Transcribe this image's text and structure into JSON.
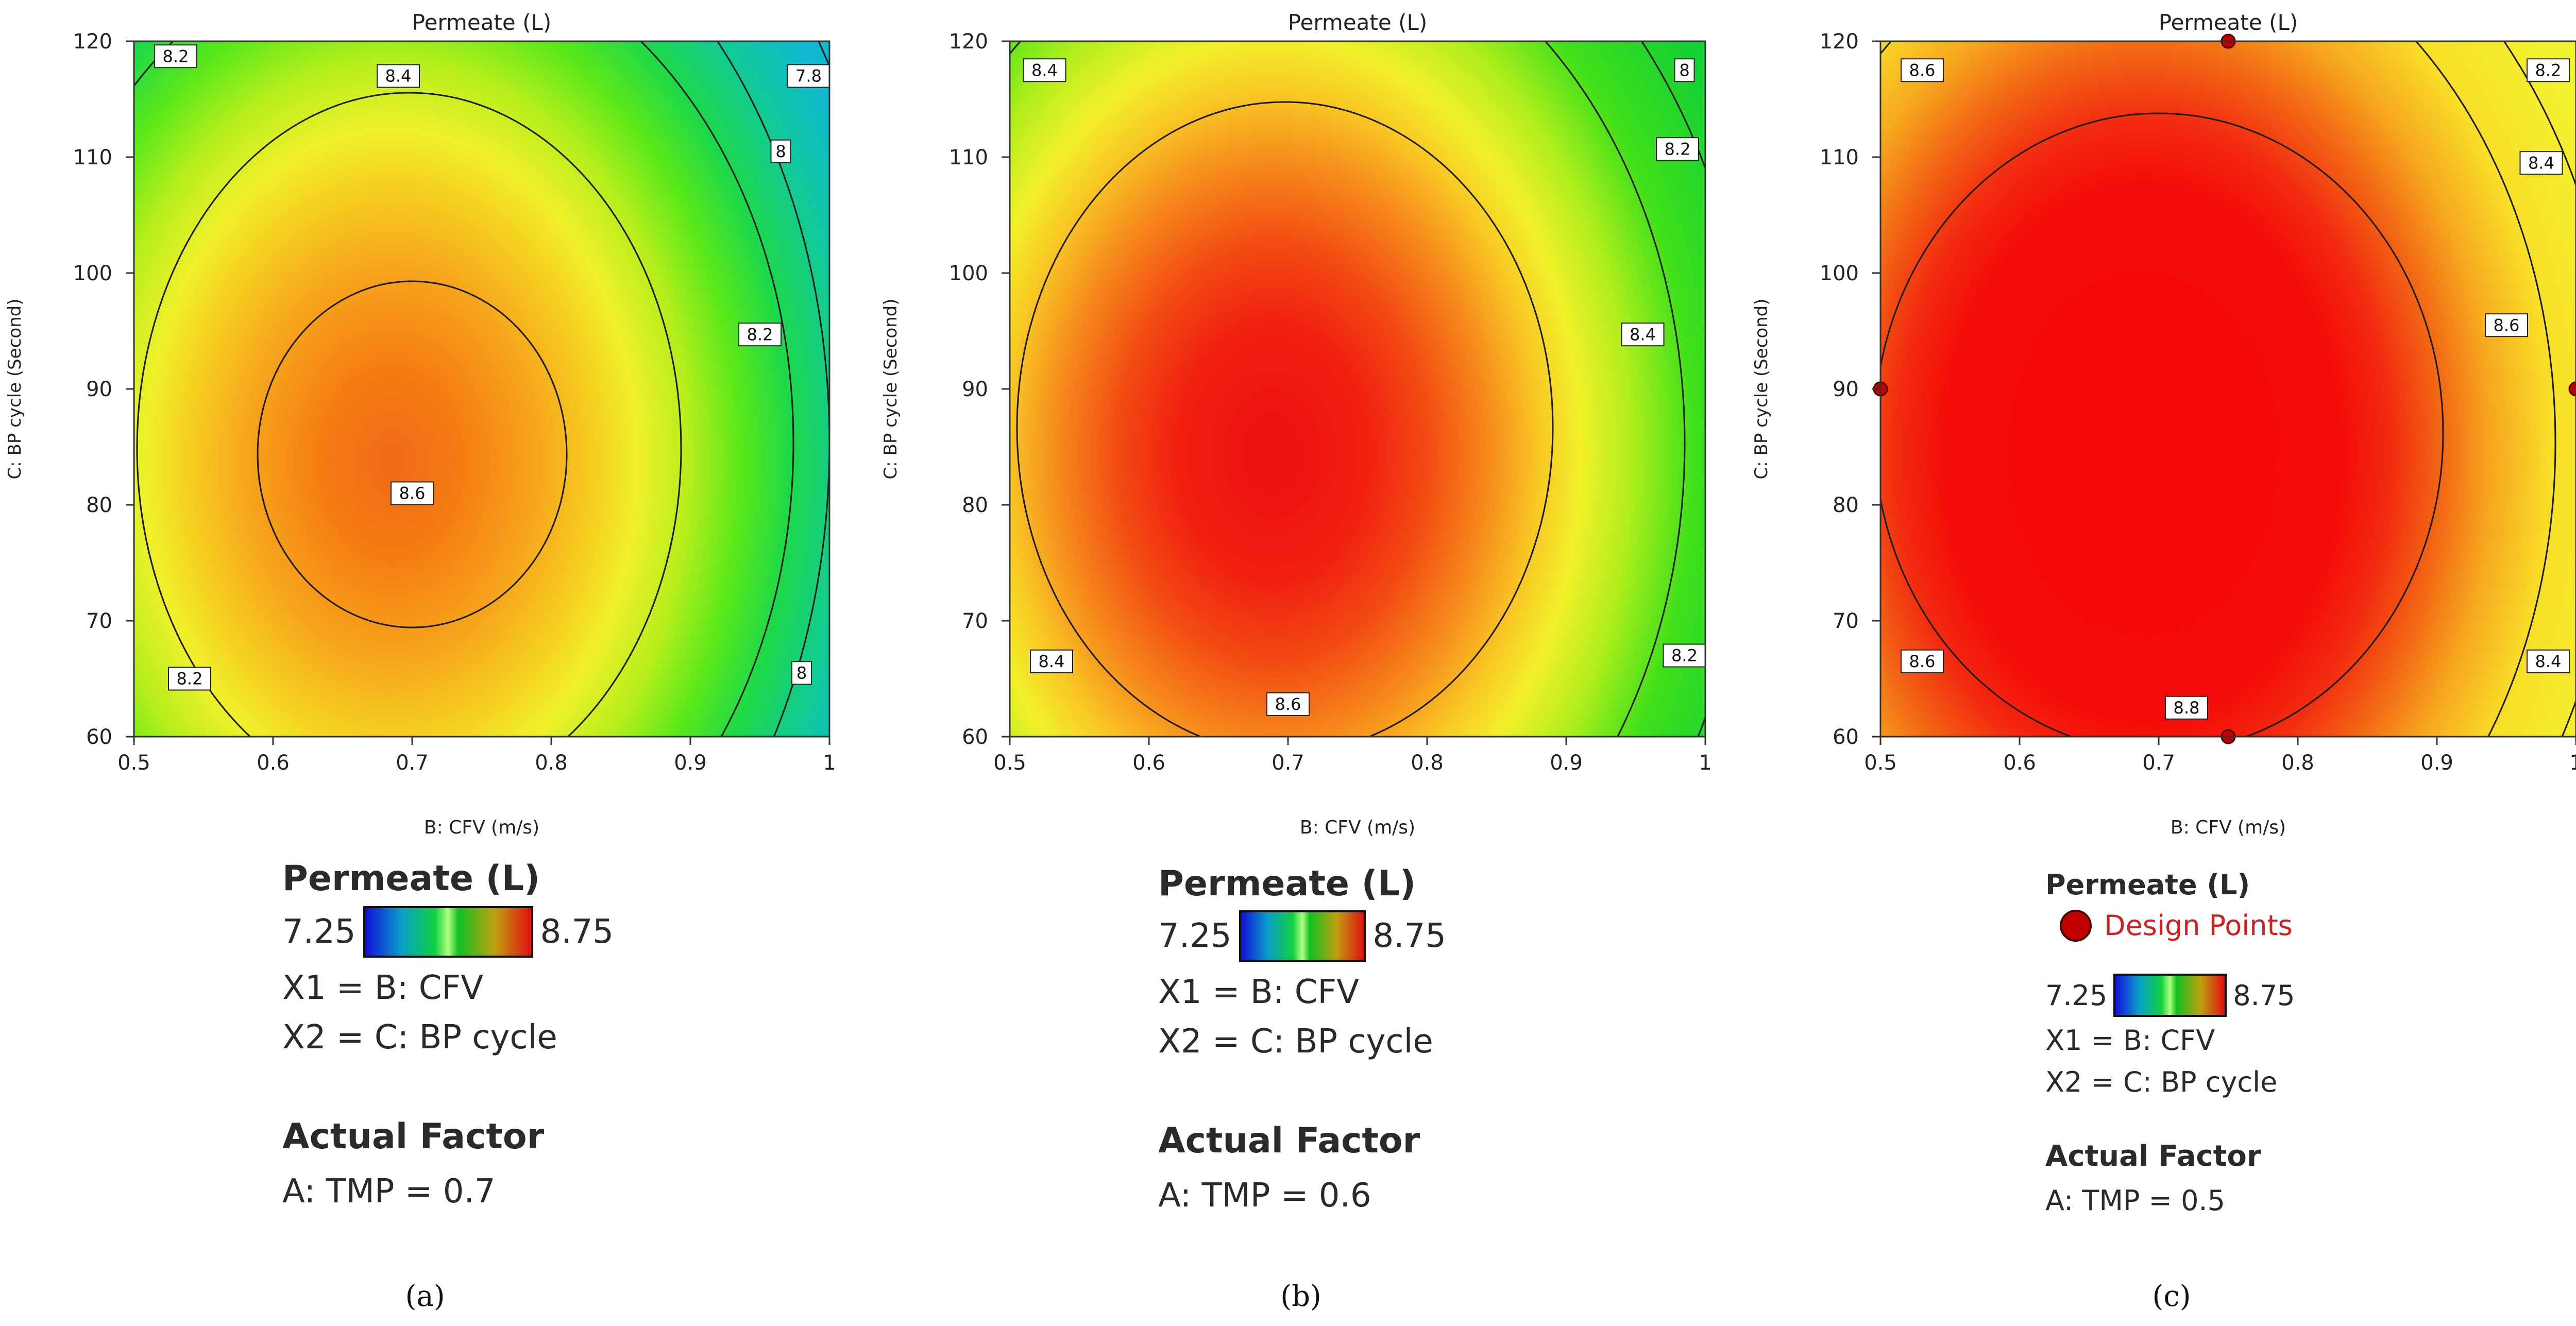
{
  "chart_data": [
    {
      "type": "contour",
      "title": "Permeate (L)",
      "xlabel": "B: CFV (m/s)",
      "ylabel": "C: BP cycle (Second)",
      "xlim": [
        0.5,
        1
      ],
      "ylim": [
        60,
        120
      ],
      "xticks": [
        "0.5",
        "0.6",
        "0.7",
        "0.8",
        "0.9",
        "1"
      ],
      "yticks": [
        "60",
        "70",
        "80",
        "90",
        "100",
        "110",
        "120"
      ],
      "response_center": {
        "x": 0.71,
        "y": 87,
        "value": 8.68
      },
      "contour_levels": [
        "8.6",
        "8.4",
        "8.2",
        "8",
        "7.8"
      ],
      "contour_labels": [
        {
          "text": "8.6",
          "x": 0.7,
          "y": 81
        },
        {
          "text": "8.4",
          "x": 0.69,
          "y": 117
        },
        {
          "text": "8.2",
          "x": 0.53,
          "y": 118.7
        },
        {
          "text": "8.2",
          "x": 0.54,
          "y": 65
        },
        {
          "text": "8.2",
          "x": 0.95,
          "y": 94.7
        },
        {
          "text": "8",
          "x": 0.965,
          "y": 110.5
        },
        {
          "text": "8",
          "x": 0.98,
          "y": 65.5
        },
        {
          "text": "7.8",
          "x": 0.985,
          "y": 117
        }
      ],
      "design_points": [],
      "legend": {
        "title": "Permeate (L)",
        "scale_min": "7.25",
        "scale_max": "8.75",
        "x1": "X1 = B: CFV",
        "x2": "X2 = C: BP cycle",
        "design_points_label": "",
        "factor_title": "Actual Factor",
        "factor": "A: TMP = 0.7"
      },
      "caption": "(a)"
    },
    {
      "type": "contour",
      "title": "Permeate (L)",
      "xlabel": "B: CFV (m/s)",
      "ylabel": "C: BP cycle (Second)",
      "xlim": [
        0.5,
        1
      ],
      "ylim": [
        60,
        120
      ],
      "xticks": [
        "0.5",
        "0.6",
        "0.7",
        "0.8",
        "0.9",
        "1"
      ],
      "yticks": [
        "60",
        "70",
        "80",
        "90",
        "100",
        "110",
        "120"
      ],
      "response_center": {
        "x": 0.72,
        "y": 86,
        "value": 8.75
      },
      "contour_levels": [
        "8.6",
        "8.4",
        "8.2",
        "8"
      ],
      "contour_labels": [
        {
          "text": "8.6",
          "x": 0.7,
          "y": 62.8
        },
        {
          "text": "8.4",
          "x": 0.525,
          "y": 117.5
        },
        {
          "text": "8.4",
          "x": 0.53,
          "y": 66.5
        },
        {
          "text": "8.4",
          "x": 0.955,
          "y": 94.7
        },
        {
          "text": "8.2",
          "x": 0.98,
          "y": 110.7
        },
        {
          "text": "8.2",
          "x": 0.985,
          "y": 67
        },
        {
          "text": "8",
          "x": 0.985,
          "y": 117.5
        }
      ],
      "design_points": [],
      "legend": {
        "title": "Permeate (L)",
        "scale_min": "7.25",
        "scale_max": "8.75",
        "x1": "X1 = B: CFV",
        "x2": "X2 = C: BP cycle",
        "design_points_label": "",
        "factor_title": "Actual Factor",
        "factor": "A: TMP = 0.6"
      },
      "caption": "(b)"
    },
    {
      "type": "contour",
      "title": "Permeate (L)",
      "xlabel": "B: CFV (m/s)",
      "ylabel": "C: BP cycle (Second)",
      "xlim": [
        0.5,
        1
      ],
      "ylim": [
        60,
        120
      ],
      "xticks": [
        "0.5",
        "0.6",
        "0.7",
        "0.8",
        "0.9",
        "1"
      ],
      "yticks": [
        "60",
        "70",
        "80",
        "90",
        "100",
        "110",
        "120"
      ],
      "response_center": {
        "x": 0.71,
        "y": 87,
        "value": 8.85
      },
      "contour_levels": [
        "8.8",
        "8.6",
        "8.4",
        "8.2"
      ],
      "contour_labels": [
        {
          "text": "8.8",
          "x": 0.72,
          "y": 62.5
        },
        {
          "text": "8.6",
          "x": 0.53,
          "y": 117.5
        },
        {
          "text": "8.6",
          "x": 0.53,
          "y": 66.5
        },
        {
          "text": "8.6",
          "x": 0.95,
          "y": 95.5
        },
        {
          "text": "8.4",
          "x": 0.975,
          "y": 109.5
        },
        {
          "text": "8.4",
          "x": 0.98,
          "y": 66.5
        },
        {
          "text": "8.2",
          "x": 0.98,
          "y": 117.5
        }
      ],
      "design_points": [
        {
          "x": 0.75,
          "y": 120
        },
        {
          "x": 0.5,
          "y": 90
        },
        {
          "x": 1,
          "y": 90
        },
        {
          "x": 0.75,
          "y": 60
        }
      ],
      "legend": {
        "title": "Permeate (L)",
        "scale_min": "7.25",
        "scale_max": "8.75",
        "x1": "X1 = B: CFV",
        "x2": "X2 = C: BP cycle",
        "design_points_label": "Design Points",
        "factor_title": "Actual Factor",
        "factor": "A: TMP = 0.5"
      },
      "caption": "(c)"
    }
  ]
}
